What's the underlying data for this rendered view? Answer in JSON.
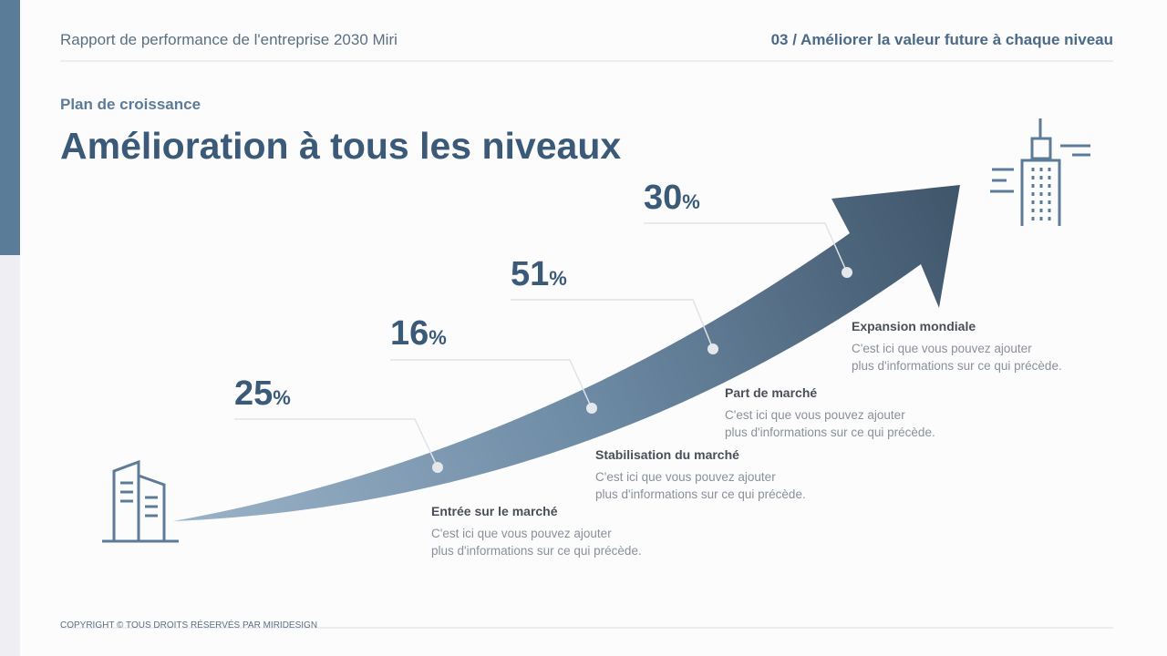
{
  "header": {
    "left": "Rapport de performance de l'entreprise 2030 Miri",
    "right": "03 / Améliorer la valeur future à chaque niveau"
  },
  "eyebrow": "Plan de croissance",
  "title": "Amélioration à tous les niveaux",
  "steps": [
    {
      "value": "25",
      "unit": "%",
      "label": "Entrée sur le marché",
      "text": [
        "C'est ici que vous pouvez ajouter",
        "plus d'informations sur ce qui précède."
      ]
    },
    {
      "value": "16",
      "unit": "%",
      "label": "Stabilisation du marché",
      "text": [
        "C'est ici que vous pouvez ajouter",
        "plus d'informations sur ce qui précède."
      ]
    },
    {
      "value": "51",
      "unit": "%",
      "label": "Part de marché",
      "text": [
        "C'est ici que vous pouvez ajouter",
        "plus d'informations sur ce qui précède."
      ]
    },
    {
      "value": "30",
      "unit": "%",
      "label": "Expansion mondiale",
      "text": [
        "C'est ici que vous pouvez ajouter",
        "plus d'informations sur ce qui précède."
      ]
    }
  ],
  "footer": "COPYRIGHT © TOUS DROITS RÉSERVÉS PAR MIRIDESIGN"
}
